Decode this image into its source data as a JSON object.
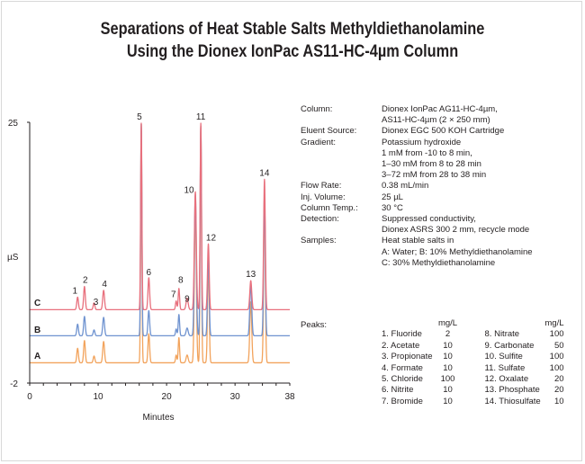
{
  "title": {
    "line1": "Separations of Heat Stable Salts Methyldiethanolamine",
    "line2": "Using the Dionex IonPac AS11-HC-4µm Column"
  },
  "conditions": [
    {
      "key": "Column:",
      "lines": [
        "Dionex IonPac AG11-HC-4µm,",
        "AS11-HC-4µm (2 × 250 mm)"
      ]
    },
    {
      "key": "Eluent Source:",
      "lines": [
        "Dionex EGC 500 KOH Cartridge"
      ]
    },
    {
      "key": "Gradient:",
      "lines": [
        "Potassium hydroxide",
        "1 mM from -10 to 8 min,",
        "1–30 mM from 8 to 28 min",
        "3–72 mM from 28 to 38 min"
      ]
    },
    {
      "key": "Flow Rate:",
      "lines": [
        "0.38 mL/min"
      ]
    },
    {
      "key": "Inj. Volume:",
      "lines": [
        "25 µL"
      ]
    },
    {
      "key": "Column Temp.:",
      "lines": [
        "30 °C"
      ]
    },
    {
      "key": "Detection:",
      "lines": [
        "Suppressed conductivity,",
        "Dionex ASRS 300 2 mm, recycle mode"
      ]
    },
    {
      "key": "Samples:",
      "lines": [
        "Heat stable salts in",
        "A: Water; B: 10% Methyldiethanolamine",
        "C: 30% Methyldiethanolamine"
      ]
    }
  ],
  "peaks_label": "Peaks:",
  "peaks_unit": "mg/L",
  "peaks": [
    {
      "name": "1.  Fluoride",
      "value": "2"
    },
    {
      "name": "2.  Acetate",
      "value": "10"
    },
    {
      "name": "3.  Propionate",
      "value": "10"
    },
    {
      "name": "4.  Formate",
      "value": "10"
    },
    {
      "name": "5.  Chloride",
      "value": "100"
    },
    {
      "name": "6.  Nitrite",
      "value": "10"
    },
    {
      "name": "7.  Bromide",
      "value": "10"
    },
    {
      "name": "8.  Nitrate",
      "value": "100"
    },
    {
      "name": "9.  Carbonate",
      "value": "50"
    },
    {
      "name": "10. Sulfite",
      "value": "100"
    },
    {
      "name": "11. Sulfate",
      "value": "100"
    },
    {
      "name": "12. Oxalate",
      "value": "20"
    },
    {
      "name": "13. Phosphate",
      "value": "20"
    },
    {
      "name": "14. Thiosulfate",
      "value": "10"
    }
  ],
  "colors": {
    "trace_A": "#f2a35c",
    "trace_B": "#6f93d0",
    "trace_C": "#e8707d",
    "axis": "#231f20",
    "peak5_fill": "#b85a2f"
  },
  "chart_data": {
    "type": "line",
    "xlabel": "Minutes",
    "ylabel": "µS",
    "xlim": [
      0,
      38
    ],
    "ylim": [
      -2,
      25
    ],
    "x_ticks": [
      "0",
      "2",
      "4",
      "6",
      "8",
      "10",
      "12",
      "14",
      "16",
      "18",
      "20",
      "22",
      "24",
      "26",
      "28",
      "30",
      "32",
      "34",
      "36",
      "38"
    ],
    "y_ticks": [
      "25",
      "-2"
    ],
    "x_tick_labels": [
      "0",
      "10",
      "20",
      "30",
      "38"
    ],
    "series": [
      {
        "name": "A",
        "baseline": 0.1,
        "peaks": [
          [
            7.0,
            1.5,
            0.12
          ],
          [
            8.0,
            2.3,
            0.12
          ],
          [
            9.4,
            0.7,
            0.12
          ],
          [
            10.8,
            2.2,
            0.13
          ],
          [
            16.3,
            24.7,
            0.09
          ],
          [
            17.4,
            3.0,
            0.12
          ],
          [
            21.4,
            0.8,
            0.1
          ],
          [
            21.8,
            2.6,
            0.1
          ],
          [
            23.0,
            0.8,
            0.15
          ],
          [
            24.2,
            16.4,
            0.14
          ],
          [
            25.0,
            24.5,
            0.1
          ],
          [
            26.1,
            10.4,
            0.12
          ],
          [
            32.3,
            6.3,
            0.14
          ],
          [
            34.3,
            17.3,
            0.12
          ]
        ]
      },
      {
        "name": "B",
        "baseline": 2.9,
        "peaks": [
          [
            7.0,
            1.2,
            0.12
          ],
          [
            8.0,
            2.0,
            0.12
          ],
          [
            9.4,
            0.6,
            0.12
          ],
          [
            10.8,
            1.9,
            0.13
          ],
          [
            16.3,
            21.9,
            0.09
          ],
          [
            17.4,
            2.6,
            0.12
          ],
          [
            21.4,
            0.7,
            0.1
          ],
          [
            21.8,
            2.2,
            0.1
          ],
          [
            23.0,
            0.8,
            0.15
          ],
          [
            24.2,
            14.6,
            0.14
          ],
          [
            25.0,
            21.7,
            0.1
          ],
          [
            26.1,
            8.5,
            0.12
          ],
          [
            32.3,
            5.4,
            0.14
          ],
          [
            34.3,
            14.5,
            0.12
          ]
        ]
      },
      {
        "name": "C",
        "baseline": 5.6,
        "peaks": [
          [
            7.0,
            1.3,
            0.12
          ],
          [
            8.0,
            2.4,
            0.12
          ],
          [
            9.4,
            0.7,
            0.12
          ],
          [
            10.8,
            2.0,
            0.13
          ],
          [
            16.3,
            19.3,
            0.09
          ],
          [
            17.4,
            3.3,
            0.12
          ],
          [
            21.4,
            0.9,
            0.1
          ],
          [
            21.8,
            2.2,
            0.1
          ],
          [
            23.0,
            1.2,
            0.15
          ],
          [
            24.2,
            12.2,
            0.14
          ],
          [
            25.0,
            19.3,
            0.1
          ],
          [
            26.1,
            6.8,
            0.12
          ],
          [
            32.3,
            3.0,
            0.14
          ],
          [
            34.3,
            13.5,
            0.12
          ]
        ]
      }
    ],
    "peak_labels": [
      "1",
      "2",
      "3",
      "4",
      "5",
      "6",
      "7",
      "8",
      "9",
      "10",
      "11",
      "12",
      "13",
      "14"
    ],
    "trace_labels": [
      "C",
      "B",
      "A"
    ]
  }
}
